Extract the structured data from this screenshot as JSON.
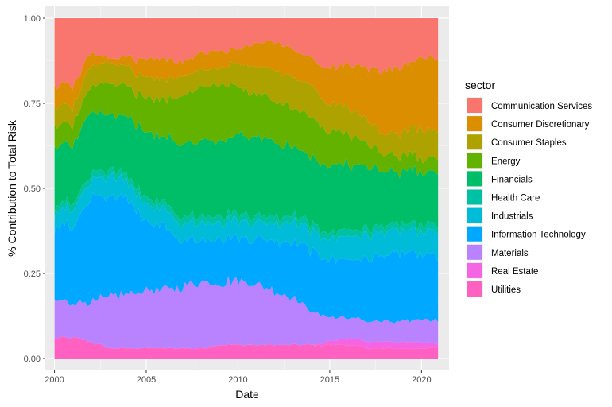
{
  "chart_data": {
    "type": "area",
    "stacked": true,
    "normalized": true,
    "xlabel": "Date",
    "ylabel": "% Contribution to Total Risk",
    "xlim": [
      1999.5,
      2021.5
    ],
    "ylim": [
      -0.035,
      1.035
    ],
    "x_ticks": [
      2000,
      2005,
      2010,
      2015,
      2020
    ],
    "x_tick_labels": [
      "2000",
      "2005",
      "2010",
      "2015",
      "2020"
    ],
    "y_ticks": [
      0,
      0.25,
      0.5,
      0.75,
      1.0
    ],
    "y_tick_labels": [
      "0.00",
      "0.25",
      "0.50",
      "0.75",
      "1.00"
    ],
    "grid": true,
    "legend": {
      "title": "sector",
      "position": "right"
    },
    "x": [
      2000,
      2001,
      2002,
      2003,
      2004,
      2005,
      2006,
      2007,
      2008,
      2009,
      2010,
      2011,
      2012,
      2013,
      2014,
      2015,
      2016,
      2017,
      2018,
      2019,
      2020,
      2020.9
    ],
    "series": [
      {
        "name": "Utilities",
        "color": "#FF61C3",
        "values": [
          0.06,
          0.06,
          0.05,
          0.03,
          0.03,
          0.03,
          0.03,
          0.03,
          0.03,
          0.04,
          0.04,
          0.04,
          0.04,
          0.04,
          0.04,
          0.04,
          0.04,
          0.03,
          0.03,
          0.03,
          0.03,
          0.03
        ]
      },
      {
        "name": "Real Estate",
        "color": "#F564E3",
        "values": [
          0.0,
          0.0,
          0.0,
          0.0,
          0.0,
          0.0,
          0.0,
          0.0,
          0.0,
          0.0,
          0.0,
          0.0,
          0.0,
          0.0,
          0.0,
          0.01,
          0.02,
          0.02,
          0.02,
          0.02,
          0.02,
          0.01
        ]
      },
      {
        "name": "Materials",
        "color": "#B983FF",
        "values": [
          0.11,
          0.1,
          0.12,
          0.15,
          0.16,
          0.17,
          0.17,
          0.18,
          0.2,
          0.18,
          0.19,
          0.18,
          0.16,
          0.14,
          0.1,
          0.07,
          0.06,
          0.06,
          0.06,
          0.06,
          0.07,
          0.07
        ]
      },
      {
        "name": "Information Technology",
        "color": "#00A9FF",
        "values": [
          0.21,
          0.23,
          0.3,
          0.3,
          0.27,
          0.21,
          0.18,
          0.14,
          0.12,
          0.13,
          0.13,
          0.13,
          0.15,
          0.16,
          0.18,
          0.17,
          0.17,
          0.18,
          0.2,
          0.2,
          0.19,
          0.19
        ]
      },
      {
        "name": "Industrials",
        "color": "#00BCD8",
        "values": [
          0.04,
          0.05,
          0.05,
          0.06,
          0.05,
          0.05,
          0.05,
          0.05,
          0.05,
          0.05,
          0.05,
          0.05,
          0.05,
          0.06,
          0.06,
          0.06,
          0.07,
          0.07,
          0.07,
          0.07,
          0.07,
          0.07
        ]
      },
      {
        "name": "Health Care",
        "color": "#00C1A3",
        "values": [
          0.02,
          0.02,
          0.02,
          0.02,
          0.02,
          0.02,
          0.02,
          0.02,
          0.02,
          0.02,
          0.02,
          0.02,
          0.02,
          0.02,
          0.02,
          0.02,
          0.02,
          0.02,
          0.02,
          0.02,
          0.02,
          0.02
        ]
      },
      {
        "name": "Financials",
        "color": "#00BE67",
        "values": [
          0.18,
          0.17,
          0.18,
          0.16,
          0.17,
          0.19,
          0.2,
          0.21,
          0.22,
          0.22,
          0.23,
          0.23,
          0.22,
          0.2,
          0.19,
          0.2,
          0.19,
          0.18,
          0.16,
          0.16,
          0.16,
          0.16
        ]
      },
      {
        "name": "Energy",
        "color": "#64B200",
        "values": [
          0.06,
          0.06,
          0.08,
          0.09,
          0.09,
          0.1,
          0.11,
          0.14,
          0.16,
          0.16,
          0.14,
          0.13,
          0.12,
          0.12,
          0.12,
          0.1,
          0.09,
          0.07,
          0.05,
          0.05,
          0.04,
          0.04
        ]
      },
      {
        "name": "Consumer Staples",
        "color": "#AEA200",
        "values": [
          0.06,
          0.05,
          0.06,
          0.06,
          0.06,
          0.06,
          0.06,
          0.06,
          0.05,
          0.05,
          0.07,
          0.08,
          0.09,
          0.09,
          0.09,
          0.08,
          0.08,
          0.07,
          0.06,
          0.07,
          0.09,
          0.08
        ]
      },
      {
        "name": "Consumer Discretionary",
        "color": "#DB8E00",
        "values": [
          0.06,
          0.06,
          0.04,
          0.01,
          0.03,
          0.05,
          0.06,
          0.04,
          0.05,
          0.05,
          0.04,
          0.07,
          0.08,
          0.08,
          0.08,
          0.1,
          0.13,
          0.15,
          0.19,
          0.2,
          0.21,
          0.21
        ]
      },
      {
        "name": "Communication Services",
        "color": "#F8766D",
        "values": [
          0.2,
          0.2,
          0.1,
          0.12,
          0.12,
          0.12,
          0.12,
          0.13,
          0.1,
          0.1,
          0.09,
          0.07,
          0.07,
          0.09,
          0.12,
          0.15,
          0.13,
          0.15,
          0.16,
          0.14,
          0.12,
          0.12
        ]
      }
    ],
    "legend_order": [
      "Communication Services",
      "Consumer Discretionary",
      "Consumer Staples",
      "Energy",
      "Financials",
      "Health Care",
      "Industrials",
      "Information Technology",
      "Materials",
      "Real Estate",
      "Utilities"
    ]
  }
}
